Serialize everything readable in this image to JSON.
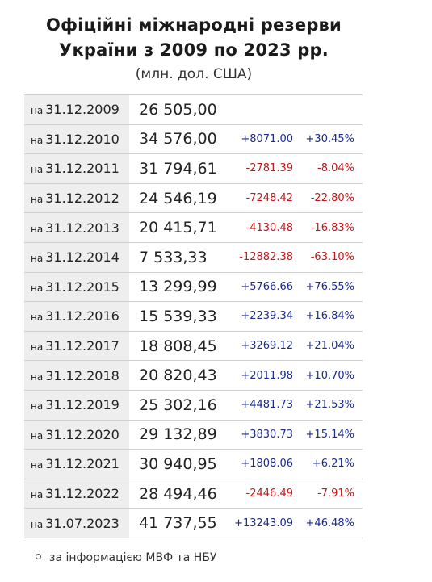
{
  "header": {
    "title_line1": "Офіційні міжнародні резерви",
    "title_line2": "України з 2009 по 2023 рр.",
    "subtitle": "(млн. дол. США)"
  },
  "table": {
    "date_prefix": "на",
    "rows": [
      {
        "date": "31.12.2009",
        "value": "26 505,00",
        "delta": "",
        "pct": "",
        "trend": "none"
      },
      {
        "date": "31.12.2010",
        "value": "34 576,00",
        "delta": "+8071.00",
        "pct": "+30.45%",
        "trend": "pos"
      },
      {
        "date": "31.12.2011",
        "value": "31 794,61",
        "delta": "-2781.39",
        "pct": "-8.04%",
        "trend": "neg"
      },
      {
        "date": "31.12.2012",
        "value": "24 546,19",
        "delta": "-7248.42",
        "pct": "-22.80%",
        "trend": "neg"
      },
      {
        "date": "31.12.2013",
        "value": "20 415,71",
        "delta": "-4130.48",
        "pct": "-16.83%",
        "trend": "neg"
      },
      {
        "date": "31.12.2014",
        "value": "7 533,33",
        "delta": "-12882.38",
        "pct": "-63.10%",
        "trend": "neg"
      },
      {
        "date": "31.12.2015",
        "value": "13 299,99",
        "delta": "+5766.66",
        "pct": "+76.55%",
        "trend": "pos"
      },
      {
        "date": "31.12.2016",
        "value": "15 539,33",
        "delta": "+2239.34",
        "pct": "+16.84%",
        "trend": "pos"
      },
      {
        "date": "31.12.2017",
        "value": "18 808,45",
        "delta": "+3269.12",
        "pct": "+21.04%",
        "trend": "pos"
      },
      {
        "date": "31.12.2018",
        "value": "20 820,43",
        "delta": "+2011.98",
        "pct": "+10.70%",
        "trend": "pos"
      },
      {
        "date": "31.12.2019",
        "value": "25 302,16",
        "delta": "+4481.73",
        "pct": "+21.53%",
        "trend": "pos"
      },
      {
        "date": "31.12.2020",
        "value": "29 132,89",
        "delta": "+3830.73",
        "pct": "+15.14%",
        "trend": "pos"
      },
      {
        "date": "31.12.2021",
        "value": "30 940,95",
        "delta": "+1808.06",
        "pct": "+6.21%",
        "trend": "pos"
      },
      {
        "date": "31.12.2022",
        "value": "28 494,46",
        "delta": "-2446.49",
        "pct": "-7.91%",
        "trend": "neg"
      },
      {
        "date": "31.07.2023",
        "value": "41 737,55",
        "delta": "+13243.09",
        "pct": "+46.48%",
        "trend": "pos"
      }
    ]
  },
  "colors": {
    "positive": "#1c2a8c",
    "negative": "#c0171a",
    "date_cell_bg": "#eeeeee"
  },
  "footer": {
    "source": "за інформацією МВФ та НБУ",
    "bullet_icon": "hollow-circle-bullet-icon"
  }
}
